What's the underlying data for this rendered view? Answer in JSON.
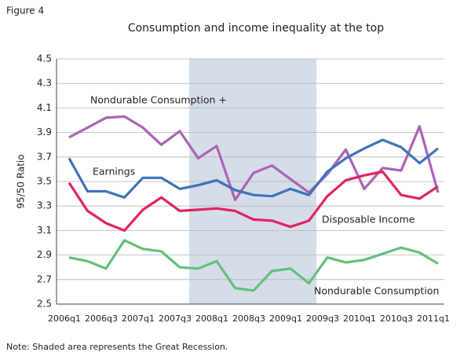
{
  "figure_label": "Figure 4",
  "note": "Note: Shaded area represents the Great Recession.",
  "chart_data": {
    "type": "line",
    "title": "Consumption and income inequality at the top",
    "y_label": "95/50 Ratio",
    "categories": [
      "2006q1",
      null,
      "2006q3",
      null,
      "2007q1",
      null,
      "2007q3",
      null,
      "2008q1",
      null,
      "2008q3",
      null,
      "2009q1",
      null,
      "2009q3",
      null,
      "2010q1",
      null,
      "2010q3",
      null,
      "2011q1"
    ],
    "ylim": [
      2.5,
      4.5
    ],
    "yticks": [
      2.5,
      2.7,
      2.9,
      3.1,
      3.3,
      3.5,
      3.7,
      3.9,
      4.1,
      4.3,
      4.5
    ],
    "grid": true,
    "series": [
      {
        "name": "Nondurable Consumption +",
        "color": "#a964b4",
        "values": [
          3.86,
          3.94,
          4.02,
          4.03,
          3.94,
          3.8,
          3.91,
          3.69,
          3.79,
          3.35,
          3.57,
          3.63,
          3.52,
          3.41,
          3.56,
          3.76,
          3.44,
          3.61,
          3.59,
          3.95,
          3.41
        ]
      },
      {
        "name": "Earnings",
        "color": "#3f73b8",
        "values": [
          3.69,
          3.42,
          3.42,
          3.37,
          3.53,
          3.53,
          3.44,
          3.47,
          3.51,
          3.43,
          3.39,
          3.38,
          3.44,
          3.39,
          3.58,
          3.69,
          3.77,
          3.84,
          3.78,
          3.65,
          3.77
        ]
      },
      {
        "name": "Disposable Income",
        "color": "#e0245f",
        "values": [
          3.49,
          3.26,
          3.16,
          3.1,
          3.27,
          3.37,
          3.26,
          3.27,
          3.28,
          3.26,
          3.19,
          3.18,
          3.13,
          3.18,
          3.38,
          3.51,
          3.55,
          3.58,
          3.39,
          3.36,
          3.46
        ]
      },
      {
        "name": "Nondurable Consumption",
        "color": "#63bf7a",
        "values": [
          2.88,
          2.85,
          2.79,
          3.02,
          2.95,
          2.93,
          2.8,
          2.79,
          2.85,
          2.63,
          2.61,
          2.77,
          2.79,
          2.67,
          2.88,
          2.84,
          2.86,
          2.91,
          2.96,
          2.92,
          2.83
        ]
      }
    ]
  }
}
